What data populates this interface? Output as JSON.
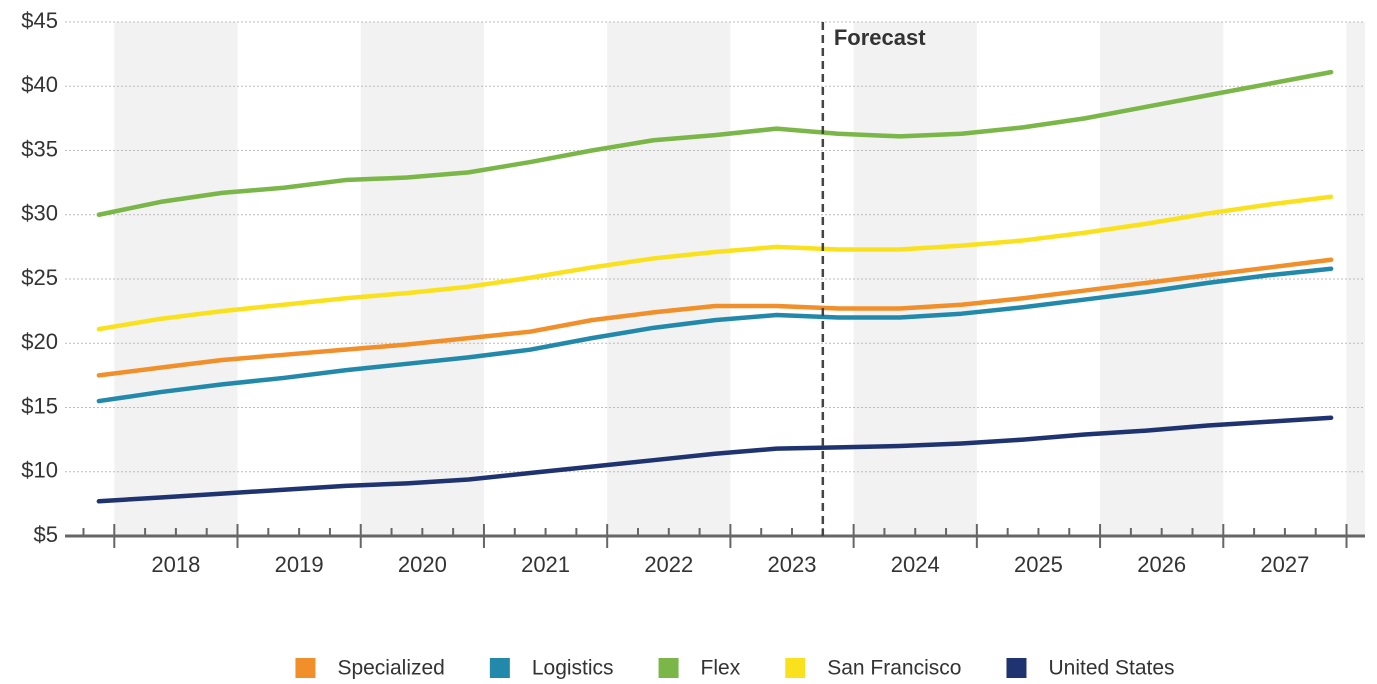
{
  "chart_data": {
    "type": "line",
    "annotation": {
      "text": "Forecast",
      "x": 2023.75
    },
    "x": [
      2017.875,
      2018.375,
      2018.875,
      2019.375,
      2019.875,
      2020.375,
      2020.875,
      2021.375,
      2021.875,
      2022.375,
      2022.875,
      2023.375,
      2023.875,
      2024.375,
      2024.875,
      2025.375,
      2025.875,
      2026.375,
      2026.875,
      2027.375,
      2027.875
    ],
    "series": [
      {
        "name": "Specialized",
        "color": "#f18f2a",
        "values": [
          17.5,
          18.1,
          18.7,
          19.1,
          19.5,
          19.9,
          20.4,
          20.9,
          21.8,
          22.4,
          22.9,
          22.9,
          22.7,
          22.7,
          23.0,
          23.5,
          24.1,
          24.7,
          25.3,
          25.9,
          26.5
        ]
      },
      {
        "name": "Logistics",
        "color": "#2389ab",
        "values": [
          15.5,
          16.2,
          16.8,
          17.3,
          17.9,
          18.4,
          18.9,
          19.5,
          20.4,
          21.2,
          21.8,
          22.2,
          22.0,
          22.0,
          22.3,
          22.8,
          23.4,
          24.0,
          24.7,
          25.3,
          25.8
        ]
      },
      {
        "name": "Flex",
        "color": "#7ab648",
        "values": [
          30.0,
          31.0,
          31.7,
          32.1,
          32.7,
          32.9,
          33.3,
          34.1,
          35.0,
          35.8,
          36.2,
          36.7,
          36.3,
          36.1,
          36.3,
          36.8,
          37.5,
          38.4,
          39.3,
          40.2,
          41.1
        ]
      },
      {
        "name": "San Francisco",
        "color": "#f9e21d",
        "values": [
          21.1,
          21.9,
          22.5,
          23.0,
          23.5,
          23.9,
          24.4,
          25.1,
          25.9,
          26.6,
          27.1,
          27.5,
          27.3,
          27.3,
          27.6,
          28.0,
          28.6,
          29.3,
          30.1,
          30.8,
          31.4
        ]
      },
      {
        "name": "United States",
        "color": "#1f3370",
        "values": [
          7.7,
          8.0,
          8.3,
          8.6,
          8.9,
          9.1,
          9.4,
          9.9,
          10.4,
          10.9,
          11.4,
          11.8,
          11.9,
          12.0,
          12.2,
          12.5,
          12.9,
          13.2,
          13.6,
          13.9,
          14.2
        ]
      }
    ],
    "xlim": [
      2017.6,
      2028.15
    ],
    "xticks": [
      {
        "value": 2018.5,
        "label": "2018"
      },
      {
        "value": 2019.5,
        "label": "2019"
      },
      {
        "value": 2020.5,
        "label": "2020"
      },
      {
        "value": 2021.5,
        "label": "2021"
      },
      {
        "value": 2022.5,
        "label": "2022"
      },
      {
        "value": 2023.5,
        "label": "2023"
      },
      {
        "value": 2024.5,
        "label": "2024"
      },
      {
        "value": 2025.5,
        "label": "2025"
      },
      {
        "value": 2026.5,
        "label": "2026"
      },
      {
        "value": 2027.5,
        "label": "2027"
      }
    ],
    "ylim": [
      5,
      45
    ],
    "yticks": [
      {
        "value": 5,
        "label": "$5"
      },
      {
        "value": 10,
        "label": "$10"
      },
      {
        "value": 15,
        "label": "$15"
      },
      {
        "value": 20,
        "label": "$20"
      },
      {
        "value": 25,
        "label": "$25"
      },
      {
        "value": 30,
        "label": "$30"
      },
      {
        "value": 35,
        "label": "$35"
      },
      {
        "value": 40,
        "label": "$40"
      },
      {
        "value": 45,
        "label": "$45"
      }
    ],
    "grid": true,
    "legend": "bottom"
  }
}
